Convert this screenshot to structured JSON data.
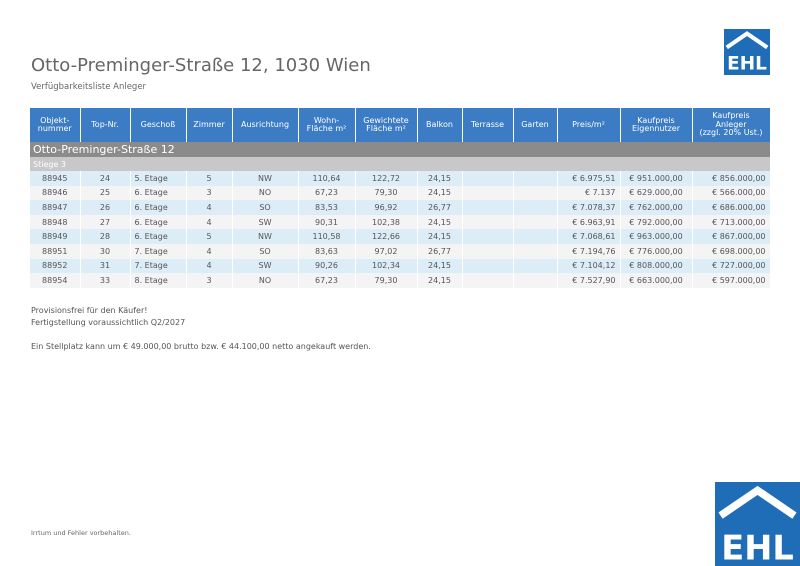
{
  "header": {
    "title": "Otto-Preminger-Straße 12, 1030 Wien",
    "subtitle": "Verfügbarkeitsliste Anleger",
    "logo_text": "EHL",
    "brand_color": "#1f6db6"
  },
  "table": {
    "columns": [
      "Objekt-\nnummer",
      "Top-Nr.",
      "Geschoß",
      "Zimmer",
      "Ausrichtung",
      "Wohn-\nFläche m²",
      "Gewichtete\nFläche m²",
      "Balkon",
      "Terrasse",
      "Garten",
      "Preis/m²",
      "Kaufpreis\nEigennutzer",
      "Kaufpreis\nAnleger\n(zzgl. 20% Ust.)"
    ],
    "street": "Otto-Preminger-Straße 12",
    "section": "Stiege 3",
    "rows": [
      [
        "88945",
        "24",
        "5. Etage",
        "5",
        "NW",
        "110,64",
        "122,72",
        "24,15",
        "",
        "",
        "€ 6.975,51",
        "€ 951.000,00",
        "€ 856.000,00"
      ],
      [
        "88946",
        "25",
        "6. Etage",
        "3",
        "NO",
        "67,23",
        "79,30",
        "24,15",
        "",
        "",
        "€ 7.137",
        "€ 629.000,00",
        "€ 566.000,00"
      ],
      [
        "88947",
        "26",
        "6. Etage",
        "4",
        "SO",
        "83,53",
        "96,92",
        "26,77",
        "",
        "",
        "€ 7.078,37",
        "€ 762.000,00",
        "€ 686.000,00"
      ],
      [
        "88948",
        "27",
        "6. Etage",
        "4",
        "SW",
        "90,31",
        "102,38",
        "24,15",
        "",
        "",
        "€ 6.963,91",
        "€ 792.000,00",
        "€ 713.000,00"
      ],
      [
        "88949",
        "28",
        "6. Etage",
        "5",
        "NW",
        "110,58",
        "122,66",
        "24,15",
        "",
        "",
        "€ 7.068,61",
        "€ 963.000,00",
        "€ 867.000,00"
      ],
      [
        "88951",
        "30",
        "7. Etage",
        "4",
        "SO",
        "83,63",
        "97,02",
        "26,77",
        "",
        "",
        "€ 7.194,76",
        "€ 776.000,00",
        "€ 698.000,00"
      ],
      [
        "88952",
        "31",
        "7. Etage",
        "4",
        "SW",
        "90,26",
        "102,34",
        "24,15",
        "",
        "",
        "€ 7.104,12",
        "€ 808.000,00",
        "€ 727.000,00"
      ],
      [
        "88954",
        "33",
        "8. Etage",
        "3",
        "NO",
        "67,23",
        "79,30",
        "24,15",
        "",
        "",
        "€ 7.527,90",
        "€ 663.000,00",
        "€ 597.000,00"
      ]
    ]
  },
  "notes": [
    "Provisionsfrei für den Käufer!",
    "Fertigstellung voraussichtlich Q2/2027",
    "Ein Stellplatz kann um € 49.000,00 brutto bzw. € 44.100,00 netto angekauft werden."
  ],
  "footer": "Irrtum und Fehler vorbehalten."
}
